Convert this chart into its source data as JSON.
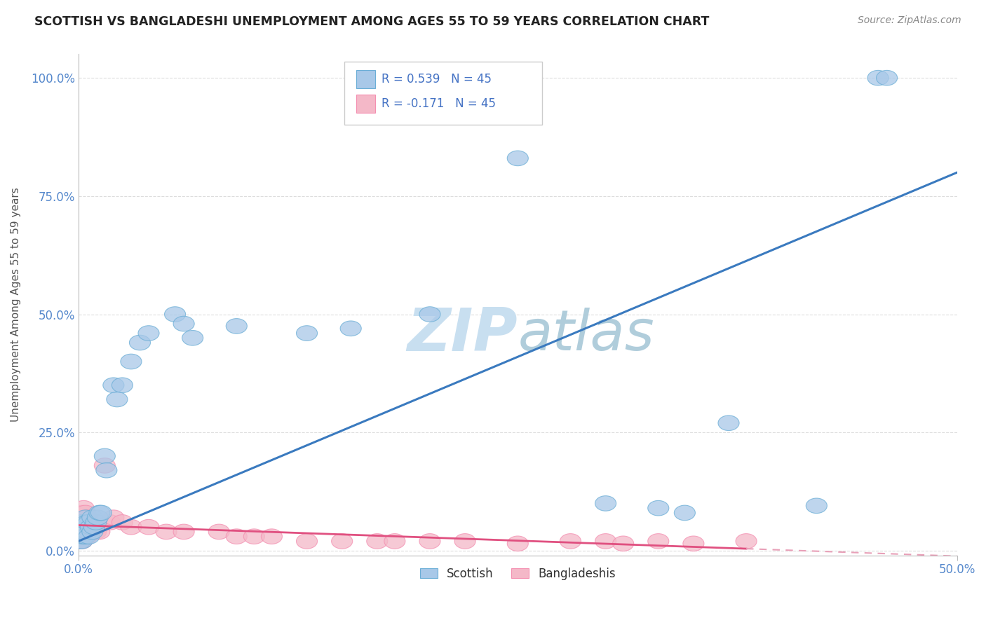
{
  "title": "SCOTTISH VS BANGLADESHI UNEMPLOYMENT AMONG AGES 55 TO 59 YEARS CORRELATION CHART",
  "source": "Source: ZipAtlas.com",
  "ylabel": "Unemployment Among Ages 55 to 59 years",
  "legend_scottish": "Scottish",
  "legend_bangladeshi": "Bangladeshis",
  "R_scottish": 0.539,
  "N_scottish": 45,
  "R_bangladeshi": -0.171,
  "N_bangladeshi": 45,
  "scottish_color": "#a8c8e8",
  "bangladeshi_color": "#f4b8c8",
  "scottish_edge_color": "#6baed6",
  "bangladeshi_edge_color": "#f48fb1",
  "scottish_line_color": "#3a7abf",
  "bangladeshi_line_color": "#e05080",
  "bangladeshi_dash_color": "#e8a0b8",
  "watermark_color": "#c8dff0",
  "xlim": [
    0.0,
    0.5
  ],
  "ylim": [
    -0.01,
    1.05
  ],
  "scottish_x": [
    0.001,
    0.001,
    0.001,
    0.002,
    0.002,
    0.002,
    0.003,
    0.003,
    0.004,
    0.004,
    0.005,
    0.005,
    0.006,
    0.006,
    0.007,
    0.008,
    0.008,
    0.009,
    0.01,
    0.011,
    0.012,
    0.013,
    0.015,
    0.016,
    0.02,
    0.022,
    0.025,
    0.03,
    0.035,
    0.04,
    0.055,
    0.06,
    0.065,
    0.09,
    0.13,
    0.155,
    0.2,
    0.25,
    0.3,
    0.33,
    0.345,
    0.37,
    0.42,
    0.455,
    0.46
  ],
  "scottish_y": [
    0.02,
    0.03,
    0.05,
    0.02,
    0.04,
    0.06,
    0.03,
    0.05,
    0.03,
    0.07,
    0.04,
    0.06,
    0.03,
    0.06,
    0.05,
    0.04,
    0.07,
    0.05,
    0.06,
    0.07,
    0.08,
    0.08,
    0.2,
    0.17,
    0.35,
    0.32,
    0.35,
    0.4,
    0.44,
    0.46,
    0.5,
    0.48,
    0.45,
    0.475,
    0.46,
    0.47,
    0.5,
    0.83,
    0.1,
    0.09,
    0.08,
    0.27,
    0.095,
    1.0,
    1.0
  ],
  "bangladeshi_x": [
    0.001,
    0.001,
    0.001,
    0.002,
    0.002,
    0.002,
    0.003,
    0.003,
    0.003,
    0.004,
    0.004,
    0.005,
    0.005,
    0.006,
    0.007,
    0.008,
    0.009,
    0.01,
    0.011,
    0.012,
    0.015,
    0.018,
    0.02,
    0.025,
    0.03,
    0.04,
    0.05,
    0.06,
    0.08,
    0.09,
    0.1,
    0.11,
    0.13,
    0.15,
    0.17,
    0.18,
    0.2,
    0.22,
    0.25,
    0.28,
    0.3,
    0.31,
    0.33,
    0.35,
    0.38
  ],
  "bangladeshi_y": [
    0.02,
    0.04,
    0.06,
    0.02,
    0.05,
    0.08,
    0.03,
    0.06,
    0.09,
    0.04,
    0.08,
    0.03,
    0.07,
    0.04,
    0.05,
    0.04,
    0.05,
    0.04,
    0.05,
    0.04,
    0.18,
    0.06,
    0.07,
    0.06,
    0.05,
    0.05,
    0.04,
    0.04,
    0.04,
    0.03,
    0.03,
    0.03,
    0.02,
    0.02,
    0.02,
    0.02,
    0.02,
    0.02,
    0.015,
    0.02,
    0.02,
    0.015,
    0.02,
    0.015,
    0.02
  ]
}
